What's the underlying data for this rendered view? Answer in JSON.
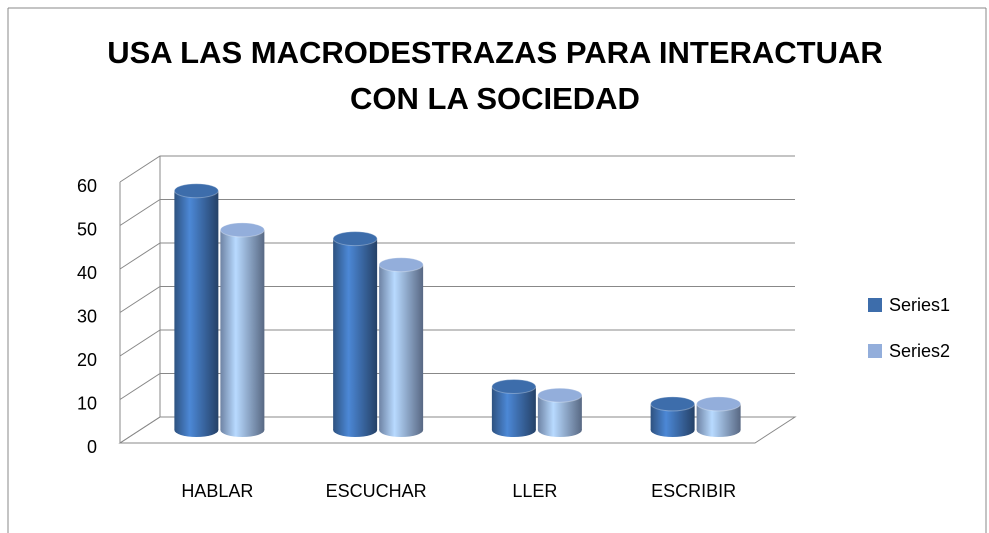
{
  "chart_data": {
    "type": "bar3d",
    "title": "USA LAS MACRODESTRAZAS PARA INTERACTUAR CON LA SOCIEDAD",
    "categories": [
      "HABLAR",
      "ESCUCHAR",
      "LLER",
      "ESCRIBIR"
    ],
    "series": [
      {
        "name": "Series1",
        "color": "#3d6dab",
        "values": [
          55,
          44,
          10,
          6
        ]
      },
      {
        "name": "Series2",
        "color": "#93aedb",
        "values": [
          46,
          38,
          8,
          6
        ]
      }
    ],
    "ylim": [
      0,
      60
    ],
    "yticks": [
      0,
      10,
      20,
      30,
      40,
      50,
      60
    ],
    "grid": true,
    "legend": "right"
  }
}
